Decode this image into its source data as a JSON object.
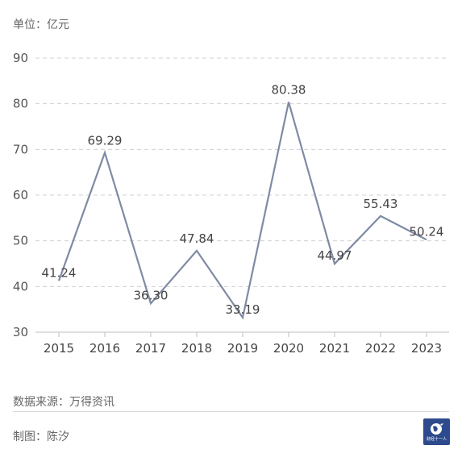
{
  "header": {
    "unit_label": "单位：亿元"
  },
  "footer": {
    "source": "数据来源：万得资讯",
    "author": "制图：陈汐",
    "logo_text": "财经十一人"
  },
  "colors": {
    "line": "#7f8ba3",
    "grid": "#d0d0d0",
    "axis": "#bfbfbf"
  },
  "chart_data": {
    "type": "line",
    "title": "",
    "xlabel": "",
    "ylabel": "",
    "categories": [
      "2015",
      "2016",
      "2017",
      "2018",
      "2019",
      "2020",
      "2021",
      "2022",
      "2023"
    ],
    "series": [
      {
        "values": [
          41.24,
          69.29,
          36.3,
          47.84,
          33.19,
          80.38,
          44.97,
          55.43,
          50.24
        ]
      }
    ],
    "data_labels": [
      "41.24",
      "69.29",
      "36.30",
      "47.84",
      "33.19",
      "80.38",
      "44.97",
      "55.43",
      "50.24"
    ],
    "ylim": [
      30,
      90
    ],
    "yticks": [
      30,
      40,
      50,
      60,
      70,
      80,
      90
    ],
    "grid": true,
    "legend": "none"
  }
}
